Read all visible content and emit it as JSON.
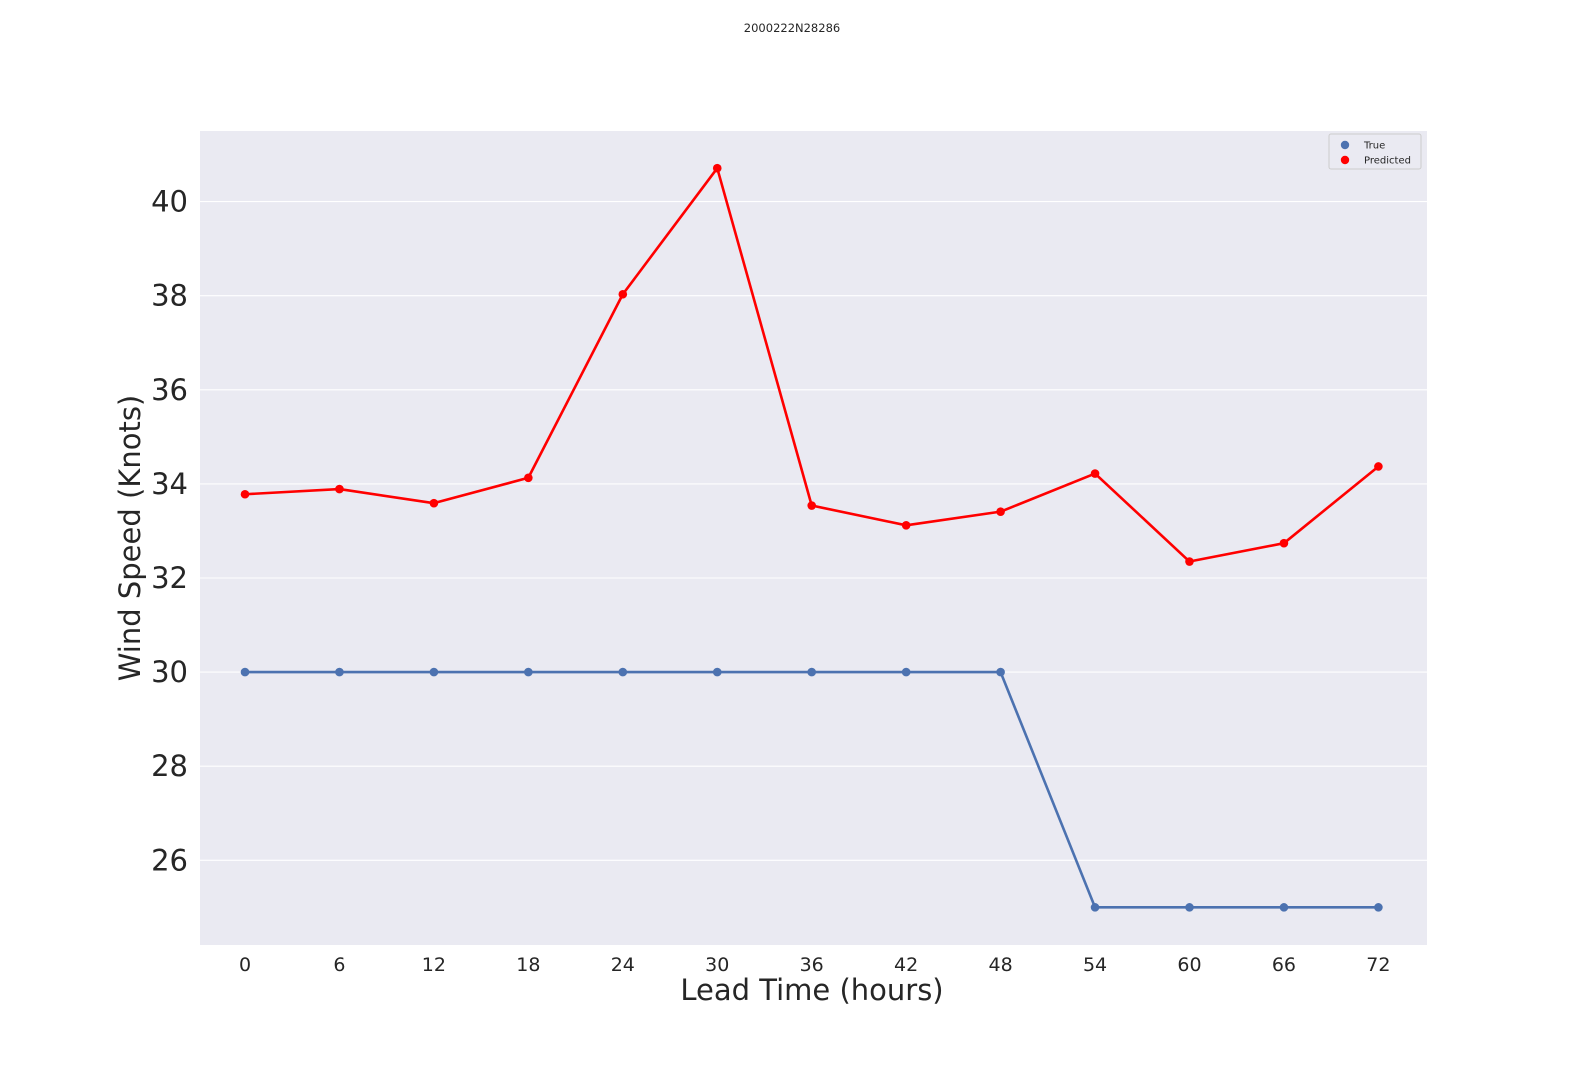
{
  "chart_data": {
    "type": "line",
    "title": "2000222N28286",
    "xlabel": "Lead Time (hours)",
    "ylabel": "Wind Speed (Knots)",
    "categories": [
      "0",
      "6",
      "12",
      "18",
      "24",
      "30",
      "36",
      "42",
      "48",
      "54",
      "60",
      "66",
      "72"
    ],
    "yticks": [
      "26",
      "28",
      "30",
      "32",
      "34",
      "36",
      "38",
      "40"
    ],
    "ylim": [
      24.2,
      41.5
    ],
    "grid": true,
    "legend_position": "top-right",
    "series": [
      {
        "name": "True",
        "color": "#4c72b0",
        "values": [
          30,
          30,
          30,
          30,
          30,
          30,
          30,
          30,
          30,
          25,
          25,
          25,
          25
        ]
      },
      {
        "name": "Predicted",
        "color": "#ff0000",
        "values": [
          33.78,
          33.89,
          33.59,
          34.13,
          38.03,
          40.71,
          33.54,
          33.12,
          33.41,
          34.22,
          32.35,
          32.74,
          34.37
        ]
      }
    ]
  }
}
